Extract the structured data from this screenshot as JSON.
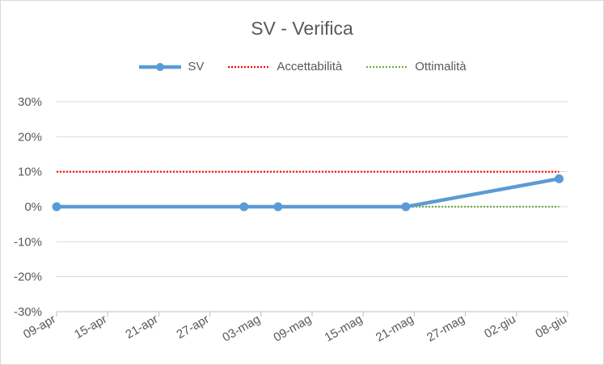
{
  "chart_data": {
    "type": "line",
    "title": "SV - Verifica",
    "x_ticks": [
      "09-apr",
      "15-apr",
      "21-apr",
      "27-apr",
      "03-mag",
      "09-mag",
      "15-mag",
      "21-mag",
      "27-mag",
      "02-giu",
      "08-giu"
    ],
    "y_ticks": [
      "30%",
      "20%",
      "10%",
      "0%",
      "-10%",
      "-20%",
      "-30%"
    ],
    "ylim": [
      -30,
      30
    ],
    "xlim": [
      "09-apr",
      "08-giu"
    ],
    "legend_position": "top",
    "grid": "horizontal",
    "series": [
      {
        "name": "SV",
        "style": "solid-with-markers",
        "color": "#5b9bd5",
        "points": [
          {
            "x": "09-apr",
            "y": 0
          },
          {
            "x": "01-mag",
            "y": 0
          },
          {
            "x": "05-mag",
            "y": 0
          },
          {
            "x": "20-mag",
            "y": 0
          },
          {
            "x": "07-giu",
            "y": 8
          }
        ]
      },
      {
        "name": "Accettabilità",
        "style": "dotted",
        "color": "#ff0000",
        "points": [
          {
            "x": "09-apr",
            "y": 10
          },
          {
            "x": "07-giu",
            "y": 10
          }
        ]
      },
      {
        "name": "Ottimalità",
        "style": "dotted",
        "color": "#70ad47",
        "points": [
          {
            "x": "09-apr",
            "y": 0
          },
          {
            "x": "07-giu",
            "y": 0
          }
        ]
      }
    ]
  }
}
